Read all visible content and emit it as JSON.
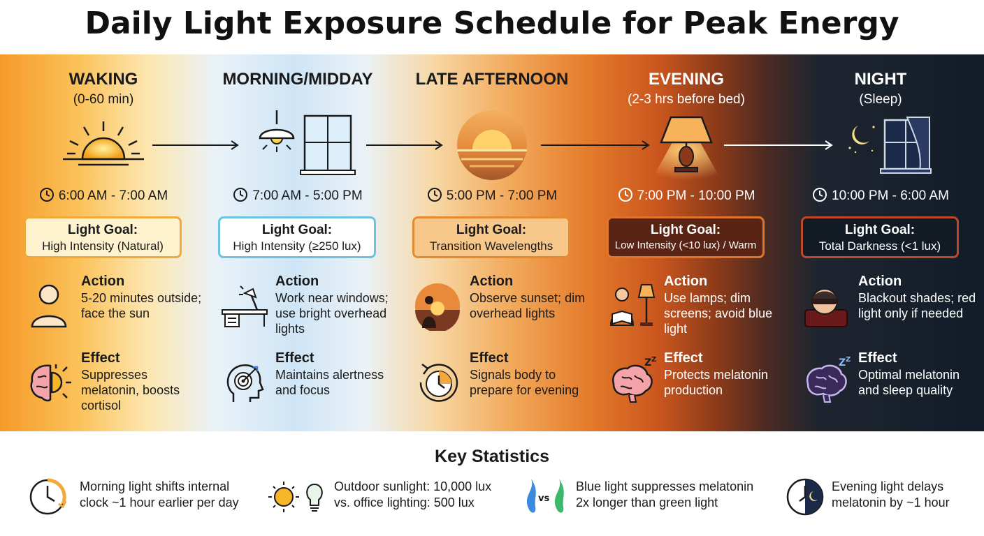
{
  "title": "Daily Light Exposure Schedule for Peak Energy",
  "phases": [
    {
      "name": "WAKING",
      "sub": "(0-60 min)",
      "time": "6:00 AM - 7:00 AM",
      "goal_label": "Light Goal:",
      "goal_value": "High Intensity (Natural)",
      "action_label": "Action",
      "action_text": "5-20 minutes outside; face the sun",
      "effect_label": "Effect",
      "effect_text": "Suppresses melatonin, boosts cortisol",
      "icon": "sunrise-icon"
    },
    {
      "name": "MORNING/MIDDAY",
      "sub": "",
      "time": "7:00 AM - 5:00 PM",
      "goal_label": "Light Goal:",
      "goal_value": "High Intensity (≥250 lux)",
      "action_label": "Action",
      "action_text": "Work near windows; use bright overhead lights",
      "effect_label": "Effect",
      "effect_text": "Maintains alertness and focus",
      "icon": "lamp-window-icon"
    },
    {
      "name": "LATE AFTERNOON",
      "sub": "",
      "time": "5:00 PM - 7:00 PM",
      "goal_label": "Light Goal:",
      "goal_value": "Transition Wavelengths",
      "action_label": "Action",
      "action_text": "Observe sunset; dim overhead lights",
      "effect_label": "Effect",
      "effect_text": "Signals body to prepare for evening",
      "icon": "sunset-icon"
    },
    {
      "name": "EVENING",
      "sub": "(2-3 hrs before bed)",
      "time": "7:00 PM - 10:00 PM",
      "goal_label": "Light Goal:",
      "goal_value": "Low Intensity (<10 lux) / Warm",
      "action_label": "Action",
      "action_text": "Use lamps; dim screens; avoid blue light",
      "effect_label": "Effect",
      "effect_text": "Protects melatonin production",
      "icon": "table-lamp-icon"
    },
    {
      "name": "NIGHT",
      "sub": "(Sleep)",
      "time": "10:00 PM - 6:00 AM",
      "goal_label": "Light Goal:",
      "goal_value": "Total Darkness (<1 lux)",
      "action_label": "Action",
      "action_text": "Blackout shades; red light only if needed",
      "effect_label": "Effect",
      "effect_text": "Optimal melatonin and sleep quality",
      "icon": "moon-window-icon"
    }
  ],
  "stats": {
    "title": "Key Statistics",
    "items": [
      {
        "line1": "Morning light shifts internal",
        "line2": "clock ~1 hour earlier per day",
        "icon": "clock-arrow-icon"
      },
      {
        "line1": "Outdoor sunlight: 10,000 lux",
        "line2": "vs. office lighting: 500 lux",
        "icon": "sun-bulb-icon"
      },
      {
        "line1": "Blue light suppresses melatonin",
        "line2": "2x longer than green light",
        "icon": "blue-vs-green-icon",
        "vs": "vs"
      },
      {
        "line1": "Evening light delays",
        "line2": "melatonin by ~1 hour",
        "icon": "night-clock-icon"
      }
    ]
  },
  "colors": {
    "goal_borders": [
      "#f2a83a",
      "#6cc3e0",
      "#e58a30",
      "#e0742a",
      "#c0462a"
    ],
    "goal_fills": [
      "#fff3cf",
      "#ffffff",
      "#f8c88a",
      "#5a2414",
      "#121a24"
    ]
  }
}
